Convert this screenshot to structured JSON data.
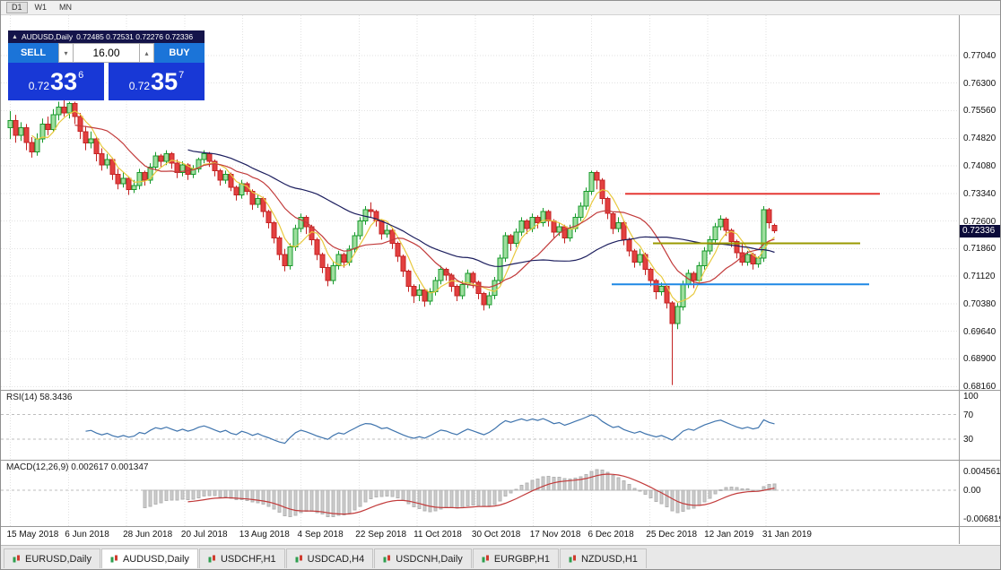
{
  "toolbar": {
    "timeframes": [
      "D1",
      "W1",
      "MN"
    ],
    "active": "D1"
  },
  "quote_panel": {
    "collapse_icon": "▲",
    "spin_down_icon": "▾",
    "spin_up_icon": "▴",
    "symbol_label": "AUDUSD,Daily",
    "ohlc_text": "0.72485 0.72531 0.72276 0.72336",
    "sell_label": "SELL",
    "buy_label": "BUY",
    "volume": "16.00",
    "sell_price": {
      "prefix": "0.72",
      "big": "33",
      "sup": "6"
    },
    "buy_price": {
      "prefix": "0.72",
      "big": "35",
      "sup": "7"
    }
  },
  "price_scale": {
    "labels": [
      "0.77040",
      "0.76300",
      "0.75560",
      "0.74820",
      "0.74080",
      "0.73340",
      "0.72600",
      "0.71860",
      "0.71120",
      "0.70380",
      "0.69640",
      "0.68900",
      "0.68160"
    ],
    "current": "0.72336"
  },
  "indicators": {
    "rsi": {
      "label": "RSI(14) 58.3436",
      "period": 14,
      "color": "#3f74ad",
      "levels": [
        "100",
        "70",
        "30"
      ],
      "level_values": [
        100,
        70,
        30
      ]
    },
    "macd": {
      "label": "MACD(12,26,9) 0.002617 0.001347",
      "histogram_color": "#cccccc",
      "signal_color": "#c23b3b",
      "scale_labels": [
        {
          "text": "0.004561",
          "value": 0.004561
        },
        {
          "text": "0.00",
          "value": 0
        },
        {
          "text": "-0.006819",
          "value": -0.006819
        }
      ]
    }
  },
  "x_axis": {
    "dates": [
      "15 May 2018",
      "6 Jun 2018",
      "28 Jun 2018",
      "20 Jul 2018",
      "13 Aug 2018",
      "4 Sep 2018",
      "22 Sep 2018",
      "11 Oct 2018",
      "30 Oct 2018",
      "17 Nov 2018",
      "6 Dec 2018",
      "25 Dec 2018",
      "12 Jan 2019",
      "31 Jan 2019"
    ]
  },
  "tabs": {
    "active_index": 1,
    "items": [
      {
        "label": "EURUSD,Daily"
      },
      {
        "label": "AUDUSD,Daily"
      },
      {
        "label": "USDCHF,H1"
      },
      {
        "label": "USDCAD,H4"
      },
      {
        "label": "USDCNH,Daily"
      },
      {
        "label": "EURGBP,H1"
      },
      {
        "label": "NZDUSD,H1"
      }
    ]
  },
  "chart_data": {
    "type": "candlestick",
    "symbol": "AUDUSD",
    "timeframe": "Daily",
    "title": "AUDUSD,Daily",
    "y_range": [
      0.6807,
      0.7812
    ],
    "current_price": 0.72336,
    "up_color": {
      "stroke": "#179a2c",
      "fill": "#9ede9e"
    },
    "down_color": {
      "stroke": "#c42323",
      "fill": "#e34040"
    },
    "moving_averages": [
      {
        "period": 5,
        "color": "#e8c93e"
      },
      {
        "period": 13,
        "color": "#c23b3b"
      },
      {
        "period": 34,
        "color": "#1c1e5e"
      }
    ],
    "hlines": [
      {
        "price": 0.7333,
        "color": "#e53935",
        "x1": 0.652,
        "x2": 0.918
      },
      {
        "price": 0.72,
        "color": "#9a9a00",
        "x1": 0.681,
        "x2": 0.897
      },
      {
        "price": 0.709,
        "color": "#1e88e5",
        "x1": 0.638,
        "x2": 0.906
      }
    ],
    "ohlc": [
      [
        0.751,
        0.7555,
        0.748,
        0.753
      ],
      [
        0.753,
        0.7545,
        0.747,
        0.749
      ],
      [
        0.749,
        0.7525,
        0.7475,
        0.751
      ],
      [
        0.751,
        0.752,
        0.745,
        0.747
      ],
      [
        0.747,
        0.7485,
        0.743,
        0.7445
      ],
      [
        0.7445,
        0.7495,
        0.7435,
        0.748
      ],
      [
        0.748,
        0.7535,
        0.747,
        0.752
      ],
      [
        0.752,
        0.754,
        0.749,
        0.7505
      ],
      [
        0.7505,
        0.756,
        0.75,
        0.7545
      ],
      [
        0.7545,
        0.758,
        0.753,
        0.7565
      ],
      [
        0.7565,
        0.7585,
        0.754,
        0.755
      ],
      [
        0.755,
        0.758,
        0.7535,
        0.7575
      ],
      [
        0.7575,
        0.758,
        0.752,
        0.754
      ],
      [
        0.754,
        0.755,
        0.748,
        0.75
      ],
      [
        0.75,
        0.7515,
        0.745,
        0.747
      ],
      [
        0.747,
        0.75,
        0.7455,
        0.748
      ],
      [
        0.748,
        0.7485,
        0.742,
        0.744
      ],
      [
        0.744,
        0.7455,
        0.7395,
        0.741
      ],
      [
        0.741,
        0.744,
        0.74,
        0.7425
      ],
      [
        0.7425,
        0.743,
        0.737,
        0.7385
      ],
      [
        0.7385,
        0.74,
        0.7345,
        0.736
      ],
      [
        0.736,
        0.739,
        0.735,
        0.7375
      ],
      [
        0.7375,
        0.738,
        0.733,
        0.7345
      ],
      [
        0.7345,
        0.737,
        0.7335,
        0.7355
      ],
      [
        0.7355,
        0.74,
        0.7345,
        0.739
      ],
      [
        0.739,
        0.7395,
        0.7355,
        0.737
      ],
      [
        0.737,
        0.7415,
        0.736,
        0.7405
      ],
      [
        0.7405,
        0.7445,
        0.7395,
        0.7435
      ],
      [
        0.7435,
        0.744,
        0.7405,
        0.742
      ],
      [
        0.742,
        0.745,
        0.741,
        0.744
      ],
      [
        0.744,
        0.7445,
        0.74,
        0.7415
      ],
      [
        0.7415,
        0.7425,
        0.7375,
        0.739
      ],
      [
        0.739,
        0.742,
        0.738,
        0.741
      ],
      [
        0.741,
        0.7415,
        0.737,
        0.7385
      ],
      [
        0.7385,
        0.741,
        0.7375,
        0.74
      ],
      [
        0.74,
        0.743,
        0.739,
        0.7425
      ],
      [
        0.7425,
        0.745,
        0.7415,
        0.744
      ],
      [
        0.744,
        0.7445,
        0.7405,
        0.742
      ],
      [
        0.742,
        0.7425,
        0.738,
        0.7395
      ],
      [
        0.7395,
        0.74,
        0.7355,
        0.737
      ],
      [
        0.737,
        0.7395,
        0.736,
        0.7385
      ],
      [
        0.7385,
        0.739,
        0.734,
        0.735
      ],
      [
        0.735,
        0.7355,
        0.7315,
        0.733
      ],
      [
        0.733,
        0.737,
        0.732,
        0.736
      ],
      [
        0.736,
        0.7365,
        0.733,
        0.734
      ],
      [
        0.734,
        0.7345,
        0.729,
        0.7305
      ],
      [
        0.7305,
        0.733,
        0.7295,
        0.732
      ],
      [
        0.732,
        0.7325,
        0.727,
        0.7285
      ],
      [
        0.7285,
        0.729,
        0.724,
        0.7255
      ],
      [
        0.7255,
        0.726,
        0.72,
        0.7215
      ],
      [
        0.7215,
        0.722,
        0.7155,
        0.717
      ],
      [
        0.717,
        0.7185,
        0.7125,
        0.714
      ],
      [
        0.714,
        0.72,
        0.713,
        0.719
      ],
      [
        0.719,
        0.725,
        0.718,
        0.724
      ],
      [
        0.724,
        0.728,
        0.723,
        0.727
      ],
      [
        0.727,
        0.7275,
        0.7225,
        0.7245
      ],
      [
        0.7245,
        0.725,
        0.7195,
        0.721
      ],
      [
        0.721,
        0.7215,
        0.7155,
        0.717
      ],
      [
        0.717,
        0.7175,
        0.712,
        0.7135
      ],
      [
        0.7135,
        0.7145,
        0.7085,
        0.71
      ],
      [
        0.71,
        0.715,
        0.709,
        0.714
      ],
      [
        0.714,
        0.718,
        0.713,
        0.717
      ],
      [
        0.717,
        0.7175,
        0.7135,
        0.715
      ],
      [
        0.715,
        0.7195,
        0.714,
        0.7185
      ],
      [
        0.7185,
        0.723,
        0.7175,
        0.722
      ],
      [
        0.722,
        0.727,
        0.721,
        0.726
      ],
      [
        0.726,
        0.73,
        0.725,
        0.729
      ],
      [
        0.729,
        0.731,
        0.727,
        0.7285
      ],
      [
        0.7285,
        0.729,
        0.7245,
        0.726
      ],
      [
        0.726,
        0.7265,
        0.721,
        0.7225
      ],
      [
        0.7225,
        0.725,
        0.7215,
        0.7235
      ],
      [
        0.7235,
        0.724,
        0.7185,
        0.72
      ],
      [
        0.72,
        0.7205,
        0.715,
        0.7165
      ],
      [
        0.7165,
        0.717,
        0.711,
        0.7125
      ],
      [
        0.7125,
        0.713,
        0.707,
        0.7085
      ],
      [
        0.7085,
        0.709,
        0.704,
        0.706
      ],
      [
        0.706,
        0.709,
        0.7045,
        0.7075
      ],
      [
        0.7075,
        0.708,
        0.703,
        0.7045
      ],
      [
        0.7045,
        0.708,
        0.7035,
        0.707
      ],
      [
        0.707,
        0.711,
        0.706,
        0.71
      ],
      [
        0.71,
        0.714,
        0.709,
        0.713
      ],
      [
        0.713,
        0.7135,
        0.71,
        0.7115
      ],
      [
        0.7115,
        0.712,
        0.707,
        0.7085
      ],
      [
        0.7085,
        0.709,
        0.7045,
        0.706
      ],
      [
        0.706,
        0.71,
        0.705,
        0.709
      ],
      [
        0.709,
        0.713,
        0.708,
        0.712
      ],
      [
        0.712,
        0.7125,
        0.708,
        0.7095
      ],
      [
        0.7095,
        0.71,
        0.705,
        0.7065
      ],
      [
        0.7065,
        0.707,
        0.702,
        0.7035
      ],
      [
        0.7035,
        0.707,
        0.7025,
        0.706
      ],
      [
        0.706,
        0.711,
        0.705,
        0.71
      ],
      [
        0.71,
        0.717,
        0.709,
        0.716
      ],
      [
        0.716,
        0.723,
        0.715,
        0.722
      ],
      [
        0.722,
        0.7225,
        0.718,
        0.72
      ],
      [
        0.72,
        0.724,
        0.719,
        0.723
      ],
      [
        0.723,
        0.727,
        0.722,
        0.726
      ],
      [
        0.726,
        0.7265,
        0.7225,
        0.724
      ],
      [
        0.724,
        0.728,
        0.723,
        0.727
      ],
      [
        0.727,
        0.7275,
        0.724,
        0.7255
      ],
      [
        0.7255,
        0.7295,
        0.7245,
        0.7285
      ],
      [
        0.7285,
        0.729,
        0.7245,
        0.726
      ],
      [
        0.726,
        0.7265,
        0.7215,
        0.723
      ],
      [
        0.723,
        0.7255,
        0.722,
        0.7245
      ],
      [
        0.7245,
        0.725,
        0.72,
        0.7215
      ],
      [
        0.7215,
        0.725,
        0.7205,
        0.724
      ],
      [
        0.724,
        0.728,
        0.723,
        0.727
      ],
      [
        0.727,
        0.731,
        0.726,
        0.73
      ],
      [
        0.73,
        0.735,
        0.729,
        0.734
      ],
      [
        0.734,
        0.7395,
        0.733,
        0.739
      ],
      [
        0.739,
        0.7395,
        0.7345,
        0.737
      ],
      [
        0.737,
        0.7375,
        0.7305,
        0.732
      ],
      [
        0.732,
        0.7325,
        0.7265,
        0.728
      ],
      [
        0.728,
        0.7285,
        0.7225,
        0.724
      ],
      [
        0.724,
        0.727,
        0.723,
        0.7255
      ],
      [
        0.7255,
        0.726,
        0.7195,
        0.721
      ],
      [
        0.721,
        0.7215,
        0.7165,
        0.718
      ],
      [
        0.718,
        0.7185,
        0.7135,
        0.715
      ],
      [
        0.715,
        0.7185,
        0.714,
        0.717
      ],
      [
        0.717,
        0.7175,
        0.7115,
        0.713
      ],
      [
        0.713,
        0.7135,
        0.7085,
        0.71
      ],
      [
        0.71,
        0.7105,
        0.705,
        0.707
      ],
      [
        0.707,
        0.7095,
        0.706,
        0.7085
      ],
      [
        0.7085,
        0.709,
        0.7025,
        0.704
      ],
      [
        0.704,
        0.7045,
        0.682,
        0.6985
      ],
      [
        0.6985,
        0.704,
        0.697,
        0.703
      ],
      [
        0.703,
        0.71,
        0.702,
        0.709
      ],
      [
        0.709,
        0.713,
        0.708,
        0.712
      ],
      [
        0.712,
        0.7125,
        0.708,
        0.71
      ],
      [
        0.71,
        0.715,
        0.709,
        0.714
      ],
      [
        0.714,
        0.719,
        0.713,
        0.718
      ],
      [
        0.718,
        0.722,
        0.717,
        0.721
      ],
      [
        0.721,
        0.7255,
        0.72,
        0.7245
      ],
      [
        0.7245,
        0.7275,
        0.7235,
        0.7265
      ],
      [
        0.7265,
        0.727,
        0.722,
        0.7235
      ],
      [
        0.7235,
        0.724,
        0.719,
        0.7205
      ],
      [
        0.7205,
        0.721,
        0.716,
        0.7175
      ],
      [
        0.7175,
        0.72,
        0.714,
        0.715
      ],
      [
        0.715,
        0.718,
        0.714,
        0.717
      ],
      [
        0.717,
        0.7175,
        0.713,
        0.7145
      ],
      [
        0.7145,
        0.7165,
        0.7135,
        0.716
      ],
      [
        0.716,
        0.73,
        0.715,
        0.729
      ],
      [
        0.729,
        0.7295,
        0.724,
        0.7255
      ],
      [
        0.72485,
        0.72531,
        0.72276,
        0.72336
      ]
    ]
  }
}
